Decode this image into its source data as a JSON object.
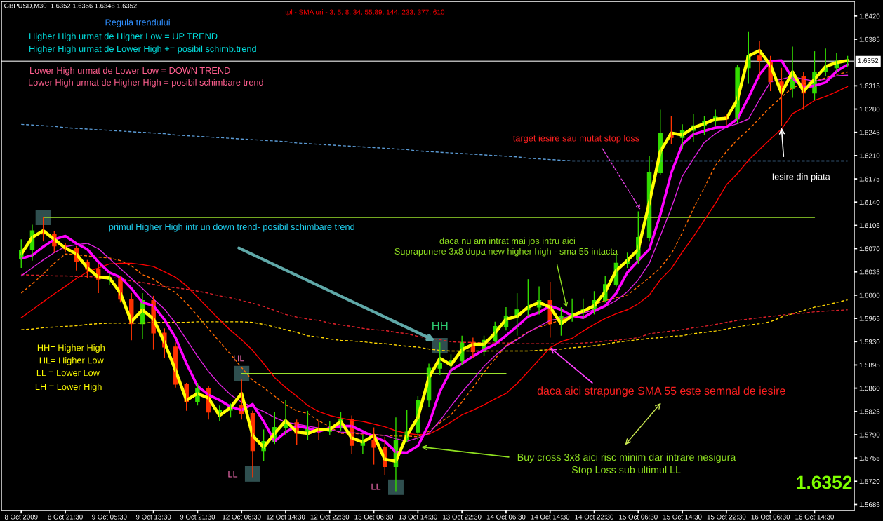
{
  "chart_data": {
    "type": "candlestick",
    "title": "GBPUSD,M30  1.6352 1.6356 1.6348 1.6352",
    "subtitle": "tpl - SMA uri - 3, 5, 8, 34, 55,89, 144, 233, 377, 610",
    "categories": [
      "8 Oct 2009",
      null,
      null,
      null,
      "8 Oct 21:30",
      null,
      null,
      null,
      "9 Oct 05:30",
      null,
      null,
      null,
      "9 Oct 13:30",
      null,
      null,
      null,
      "9 Oct 21:30",
      null,
      null,
      null,
      "12 Oct 06:30",
      null,
      null,
      null,
      "12 Oct 14:30",
      null,
      null,
      null,
      "12 Oct 22:30",
      null,
      null,
      null,
      "13 Oct 06:30",
      null,
      null,
      null,
      "13 Oct 14:30",
      null,
      null,
      null,
      "13 Oct 22:30",
      null,
      null,
      null,
      "14 Oct 06:30",
      null,
      null,
      null,
      "14 Oct 14:30",
      null,
      null,
      null,
      "14 Oct 22:30",
      null,
      null,
      null,
      "15 Oct 06:30",
      null,
      null,
      null,
      "15 Oct 14:30",
      null,
      null,
      null,
      "15 Oct 22:30",
      null,
      null,
      null,
      "16 Oct 06:30",
      null,
      null,
      null,
      "16 Oct 14:30",
      null,
      null,
      null
    ],
    "ohlc": [
      [
        1.6055,
        1.6084,
        1.6041,
        1.6068
      ],
      [
        1.6068,
        1.6106,
        1.6052,
        1.6097
      ],
      [
        1.6097,
        1.6117,
        1.6081,
        1.6092
      ],
      [
        1.6092,
        1.6097,
        1.6064,
        1.6074
      ],
      [
        1.6074,
        1.6079,
        1.6064,
        1.607
      ],
      [
        1.607,
        1.6074,
        1.6037,
        1.605
      ],
      [
        1.605,
        1.6053,
        1.6026,
        1.6039
      ],
      [
        1.6039,
        1.6047,
        1.6003,
        1.6024
      ],
      [
        1.6024,
        1.6032,
        1.6015,
        1.6026
      ],
      [
        1.6026,
        1.6029,
        1.5989,
        1.5994
      ],
      [
        1.5994,
        1.6003,
        1.5932,
        1.5957
      ],
      [
        1.5957,
        1.6003,
        1.5934,
        1.5992
      ],
      [
        1.5992,
        1.5999,
        1.5918,
        1.5943
      ],
      [
        1.5943,
        1.595,
        1.5905,
        1.5922
      ],
      [
        1.5922,
        1.5929,
        1.5861,
        1.5866
      ],
      [
        1.5866,
        1.5868,
        1.5826,
        1.584
      ],
      [
        1.584,
        1.5868,
        1.5834,
        1.5859
      ],
      [
        1.5859,
        1.5863,
        1.5813,
        1.5824
      ],
      [
        1.5824,
        1.5834,
        1.5811,
        1.5827
      ],
      [
        1.5827,
        1.5837,
        1.5816,
        1.5834
      ],
      [
        1.5834,
        1.5873,
        1.5813,
        1.5822
      ],
      [
        1.5822,
        1.5826,
        1.5726,
        1.5766
      ],
      [
        1.5766,
        1.5798,
        1.575,
        1.578
      ],
      [
        1.578,
        1.5824,
        1.5776,
        1.5801
      ],
      [
        1.5801,
        1.5842,
        1.5789,
        1.5808
      ],
      [
        1.5808,
        1.5813,
        1.5774,
        1.5792
      ],
      [
        1.5792,
        1.5826,
        1.5782,
        1.58
      ],
      [
        1.58,
        1.581,
        1.5782,
        1.5795
      ],
      [
        1.5795,
        1.581,
        1.5789,
        1.58
      ],
      [
        1.58,
        1.5824,
        1.5795,
        1.5813
      ],
      [
        1.5813,
        1.5819,
        1.5761,
        1.5774
      ],
      [
        1.5774,
        1.5789,
        1.5761,
        1.5782
      ],
      [
        1.5782,
        1.5801,
        1.5745,
        1.5771
      ],
      [
        1.5771,
        1.5787,
        1.5729,
        1.5742
      ],
      [
        1.5742,
        1.5816,
        1.5705,
        1.5782
      ],
      [
        1.5782,
        1.5827,
        1.5779,
        1.5794
      ],
      [
        1.5794,
        1.5848,
        1.5782,
        1.5842
      ],
      [
        1.5842,
        1.5897,
        1.5832,
        1.589
      ],
      [
        1.589,
        1.5929,
        1.588,
        1.5897
      ],
      [
        1.5897,
        1.5911,
        1.588,
        1.5901
      ],
      [
        1.5901,
        1.5939,
        1.5895,
        1.5929
      ],
      [
        1.5929,
        1.5936,
        1.5905,
        1.5915
      ],
      [
        1.5915,
        1.5939,
        1.5908,
        1.5932
      ],
      [
        1.5932,
        1.596,
        1.5929,
        1.5953
      ],
      [
        1.5953,
        1.5982,
        1.5947,
        1.5968
      ],
      [
        1.5968,
        1.6003,
        1.5939,
        1.5978
      ],
      [
        1.5978,
        1.6024,
        1.5968,
        1.5982
      ],
      [
        1.5982,
        1.6013,
        1.5971,
        1.5992
      ],
      [
        1.5992,
        1.602,
        1.5936,
        1.5957
      ],
      [
        1.5957,
        1.5982,
        1.5939,
        1.5968
      ],
      [
        1.5968,
        1.5995,
        1.596,
        1.5973
      ],
      [
        1.5973,
        1.5995,
        1.5964,
        1.5978
      ],
      [
        1.5978,
        1.6006,
        1.5971,
        1.5992
      ],
      [
        1.5992,
        1.6029,
        1.5989,
        1.6016
      ],
      [
        1.6016,
        1.606,
        1.6013,
        1.6048
      ],
      [
        1.6048,
        1.6064,
        1.6041,
        1.6053
      ],
      [
        1.6053,
        1.6126,
        1.6047,
        1.6087
      ],
      [
        1.6087,
        1.621,
        1.6081,
        1.6184
      ],
      [
        1.6184,
        1.6279,
        1.6181,
        1.6244
      ],
      [
        1.6244,
        1.6269,
        1.6227,
        1.6237
      ],
      [
        1.6237,
        1.6257,
        1.622,
        1.6248
      ],
      [
        1.6248,
        1.6273,
        1.6231,
        1.6255
      ],
      [
        1.6255,
        1.6269,
        1.6241,
        1.6262
      ],
      [
        1.6262,
        1.6279,
        1.6255,
        1.6268
      ],
      [
        1.6268,
        1.6273,
        1.6255,
        1.6265
      ],
      [
        1.6265,
        1.6346,
        1.6258,
        1.6342
      ],
      [
        1.6342,
        1.6397,
        1.6318,
        1.636
      ],
      [
        1.636,
        1.6383,
        1.6325,
        1.6353
      ],
      [
        1.6353,
        1.636,
        1.6307,
        1.6321
      ],
      [
        1.6321,
        1.6342,
        1.6255,
        1.6311
      ],
      [
        1.6311,
        1.6374,
        1.6297,
        1.6329
      ],
      [
        1.6329,
        1.6336,
        1.6279,
        1.6304
      ],
      [
        1.6304,
        1.6367,
        1.6294,
        1.6336
      ],
      [
        1.6336,
        1.6371,
        1.6329,
        1.6342
      ],
      [
        1.6342,
        1.6365,
        1.6336,
        1.6352
      ],
      [
        1.6352,
        1.636,
        1.6344,
        1.6352
      ]
    ],
    "colors": [
      "#33dd00",
      "#33dd00",
      "#ff3300",
      "#ff3300",
      "#ff3300",
      "#ff3300",
      "#ff3300",
      "#ff3300",
      "#33dd00",
      "#ff3300",
      "#ff3300",
      "#33dd00",
      "#ff3300",
      "#ff3300",
      "#ff3300",
      "#ff3300",
      "#33dd00",
      "#ff3300",
      "#33dd00",
      "#33dd00",
      "#ff3300",
      "#ff3300",
      "#33dd00",
      "#33dd00",
      "#33dd00",
      "#ff3300",
      "#33dd00",
      "#ff3300",
      "#33dd00",
      "#33dd00",
      "#ff3300",
      "#33dd00",
      "#ff3300",
      "#ff3300",
      "#33dd00",
      "#33dd00",
      "#33dd00",
      "#33dd00",
      "#33dd00",
      "#33dd00",
      "#33dd00",
      "#ff3300",
      "#33dd00",
      "#33dd00",
      "#33dd00",
      "#33dd00",
      "#33dd00",
      "#33dd00",
      "#ff3300",
      "#33dd00",
      "#33dd00",
      "#33dd00",
      "#33dd00",
      "#33dd00",
      "#33dd00",
      "#33dd00",
      "#33dd00",
      "#33dd00",
      "#33dd00",
      "#ff3300",
      "#33dd00",
      "#33dd00",
      "#33dd00",
      "#33dd00",
      "#ff3300",
      "#33dd00",
      "#33dd00",
      "#ff3300",
      "#ff3300",
      "#ff3300",
      "#33dd00",
      "#ff3300",
      "#33dd00",
      "#33dd00",
      "#33dd00",
      "#33dd00"
    ],
    "series": [
      {
        "type": "line",
        "color": "#ffff00",
        "line_style": "solid",
        "values": [
          1.6062,
          1.6087,
          1.6097,
          1.6084,
          1.6071,
          1.6062,
          1.6041,
          1.6027,
          1.6026,
          1.6003,
          1.596,
          1.5978,
          1.5964,
          1.5929,
          1.5887,
          1.5842,
          1.5852,
          1.5845,
          1.5819,
          1.5831,
          1.5852,
          1.5789,
          1.5771,
          1.5792,
          1.5811,
          1.5794,
          1.5792,
          1.5798,
          1.5798,
          1.581,
          1.5785,
          1.5779,
          1.5789,
          1.5753,
          1.575,
          1.5789,
          1.5816,
          1.5876,
          1.5905,
          1.5895,
          1.5918,
          1.5926,
          1.5926,
          1.5943,
          1.5964,
          1.5968,
          1.5982,
          1.5989,
          1.5982,
          1.5957,
          1.5969,
          1.5976,
          1.5984,
          1.6005,
          1.6037,
          1.6052,
          1.6069,
          1.6139,
          1.6216,
          1.6244,
          1.6241,
          1.6252,
          1.6258,
          1.6265,
          1.6266,
          1.6294,
          1.636,
          1.6368,
          1.6346,
          1.6304,
          1.6336,
          1.6307,
          1.6325,
          1.6344,
          1.635,
          1.6353
        ]
      },
      {
        "type": "line",
        "color": "#ff00ff",
        "line_style": "solid",
        "values": [
          1.6055,
          1.606,
          1.6073,
          1.6084,
          1.6089,
          1.6078,
          1.6069,
          1.605,
          1.6034,
          1.6027,
          1.601,
          1.5989,
          1.5984,
          1.5963,
          1.5936,
          1.5897,
          1.5863,
          1.585,
          1.5842,
          1.5832,
          1.5827,
          1.5836,
          1.581,
          1.578,
          1.5794,
          1.5803,
          1.58,
          1.5795,
          1.58,
          1.5803,
          1.5803,
          1.5795,
          1.5787,
          1.578,
          1.5764,
          1.5763,
          1.5773,
          1.5806,
          1.5855,
          1.5887,
          1.5897,
          1.5908,
          1.5918,
          1.5926,
          1.5939,
          1.5953,
          1.5968,
          1.5974,
          1.5984,
          1.5978,
          1.5969,
          1.5966,
          1.5976,
          1.5984,
          1.6003,
          1.6034,
          1.6052,
          1.6069,
          1.6121,
          1.6184,
          1.6227,
          1.6242,
          1.6247,
          1.6252,
          1.6253,
          1.6265,
          1.6297,
          1.6332,
          1.6352,
          1.6353,
          1.6326,
          1.6313,
          1.6315,
          1.632,
          1.6337,
          1.6347
        ]
      },
      {
        "type": "line",
        "color": "#e020e0",
        "line_style": "solid",
        "values": [
          1.6029,
          1.6041,
          1.6053,
          1.6064,
          1.6073,
          1.6076,
          1.6078,
          1.607,
          1.6055,
          1.604,
          1.6025,
          1.601,
          1.5994,
          1.5979,
          1.5958,
          1.5933,
          1.5908,
          1.5885,
          1.5866,
          1.585,
          1.5839,
          1.5832,
          1.5825,
          1.5816,
          1.5809,
          1.5806,
          1.5803,
          1.58,
          1.5798,
          1.5794,
          1.5793,
          1.5792,
          1.579,
          1.5789,
          1.5784,
          1.578,
          1.5785,
          1.5792,
          1.5811,
          1.5833,
          1.5854,
          1.5873,
          1.5893,
          1.5909,
          1.5923,
          1.5933,
          1.5944,
          1.5953,
          1.5962,
          1.5965,
          1.5969,
          1.5973,
          1.5978,
          1.5983,
          1.5992,
          1.6005,
          1.6023,
          1.6048,
          1.6089,
          1.6131,
          1.6179,
          1.6205,
          1.623,
          1.6243,
          1.6253,
          1.6258,
          1.6265,
          1.6294,
          1.6321,
          1.6325,
          1.6329,
          1.6325,
          1.6322,
          1.6325,
          1.633,
          1.6331
        ]
      },
      {
        "type": "line",
        "color": "#ff0000",
        "line_style": "solid",
        "values": [
          1.5966,
          1.5978,
          1.599,
          1.6002,
          1.6013,
          1.6025,
          1.6035,
          1.6041,
          1.6047,
          1.6048,
          1.6048,
          1.6046,
          1.6043,
          1.6035,
          1.6027,
          1.6014,
          1.5997,
          1.598,
          1.5963,
          1.5947,
          1.5933,
          1.5917,
          1.5897,
          1.5876,
          1.5861,
          1.5848,
          1.5834,
          1.5825,
          1.5819,
          1.5815,
          1.5812,
          1.581,
          1.5806,
          1.5802,
          1.5796,
          1.5792,
          1.579,
          1.5791,
          1.5799,
          1.5809,
          1.582,
          1.5827,
          1.5835,
          1.5844,
          1.5852,
          1.5867,
          1.5885,
          1.5903,
          1.5921,
          1.593,
          1.5935,
          1.5946,
          1.5956,
          1.5965,
          1.5972,
          1.5978,
          1.5987,
          1.6,
          1.6023,
          1.604,
          1.6065,
          1.6088,
          1.6113,
          1.6138,
          1.6166,
          1.6183,
          1.6203,
          1.6219,
          1.6235,
          1.625,
          1.6273,
          1.6282,
          1.6293,
          1.6299,
          1.6306,
          1.6314
        ]
      },
      {
        "type": "line",
        "color": "#ff6a00",
        "line_style": "dashed",
        "values": [
          1.6003,
          1.6017,
          1.6032,
          1.6048,
          1.6062,
          1.6061,
          1.6059,
          1.6057,
          1.6056,
          1.6052,
          1.6044,
          1.6031,
          1.6024,
          1.6013,
          1.6004,
          1.5988,
          1.5969,
          1.5949,
          1.593,
          1.5911,
          1.5891,
          1.5872,
          1.5861,
          1.5848,
          1.5835,
          1.5826,
          1.5822,
          1.5811,
          1.5802,
          1.5792,
          1.5792,
          1.5791,
          1.579,
          1.5789,
          1.5788,
          1.5788,
          1.5787,
          1.5795,
          1.5808,
          1.582,
          1.5839,
          1.5861,
          1.5884,
          1.5904,
          1.5924,
          1.5934,
          1.5945,
          1.5952,
          1.5957,
          1.5963,
          1.5967,
          1.5977,
          1.5986,
          1.5992,
          1.5996,
          1.6,
          1.6013,
          1.6026,
          1.6041,
          1.6062,
          1.6094,
          1.613,
          1.6162,
          1.6195,
          1.6216,
          1.6234,
          1.6249,
          1.6266,
          1.6283,
          1.6298,
          1.6312,
          1.6318,
          1.6322,
          1.6327,
          1.6332,
          1.6336
        ]
      },
      {
        "type": "line",
        "color": "#e0202a",
        "line_style": "dashed",
        "values": [
          1.6031,
          1.603,
          1.603,
          1.6029,
          1.6029,
          1.6028,
          1.6028,
          1.6027,
          1.6027,
          1.6025,
          1.6021,
          1.6019,
          1.6016,
          1.6013,
          1.6011,
          1.6009,
          1.6006,
          1.6003,
          1.5999,
          1.5996,
          1.5992,
          1.5988,
          1.5983,
          1.5977,
          1.5971,
          1.5967,
          1.5964,
          1.5962,
          1.5958,
          1.5955,
          1.5953,
          1.595,
          1.5948,
          1.5947,
          1.5944,
          1.5942,
          1.5938,
          1.5935,
          1.5933,
          1.593,
          1.5929,
          1.5929,
          1.5928,
          1.5928,
          1.5928,
          1.5927,
          1.5927,
          1.5927,
          1.5927,
          1.5927,
          1.5927,
          1.5928,
          1.5929,
          1.5931,
          1.5932,
          1.5934,
          1.5936,
          1.5942,
          1.5944,
          1.5946,
          1.5948,
          1.5951,
          1.5953,
          1.5956,
          1.5959,
          1.5962,
          1.5964,
          1.5966,
          1.5968,
          1.597,
          1.5972,
          1.5973,
          1.5975,
          1.5976,
          1.5977,
          1.5978
        ]
      },
      {
        "type": "line",
        "color": "#ffd700",
        "line_style": "dashed",
        "values": [
          1.5948,
          1.5949,
          1.5951,
          1.5952,
          1.5953,
          1.5954,
          1.5956,
          1.5957,
          1.5958,
          1.5958,
          1.5958,
          1.5958,
          1.5959,
          1.5959,
          1.5959,
          1.5959,
          1.596,
          1.596,
          1.596,
          1.596,
          1.596,
          1.5959,
          1.5956,
          1.5952,
          1.5948,
          1.5944,
          1.5939,
          1.5937,
          1.5934,
          1.5932,
          1.5931,
          1.593,
          1.5928,
          1.5927,
          1.5925,
          1.5923,
          1.5922,
          1.5919,
          1.5917,
          1.5916,
          1.5916,
          1.5916,
          1.5916,
          1.5916,
          1.5916,
          1.5916,
          1.5916,
          1.5917,
          1.5918,
          1.5919,
          1.5921,
          1.5922,
          1.5924,
          1.5926,
          1.5929,
          1.5931,
          1.5933,
          1.5935,
          1.5936,
          1.5938,
          1.5939,
          1.5942,
          1.5944,
          1.5946,
          1.5949,
          1.5952,
          1.5955,
          1.5957,
          1.596,
          1.5967,
          1.5972,
          1.5977,
          1.5982,
          1.5985,
          1.5989,
          1.5993
        ]
      },
      {
        "type": "line",
        "color": "#5b9bd5",
        "line_style": "dashed",
        "values": [
          1.6257,
          1.6256,
          1.6255,
          1.6254,
          1.6252,
          1.6251,
          1.625,
          1.6249,
          1.6248,
          1.6247,
          1.6246,
          1.6245,
          1.6244,
          1.6243,
          1.6241,
          1.624,
          1.6239,
          1.6238,
          1.6237,
          1.6236,
          1.6235,
          1.6234,
          1.6233,
          1.6232,
          1.6231,
          1.6229,
          1.6228,
          1.6227,
          1.6226,
          1.6225,
          1.6224,
          1.6223,
          1.6222,
          1.6221,
          1.622,
          1.6219,
          1.6217,
          1.6216,
          1.6215,
          1.6214,
          1.6213,
          1.6212,
          1.6211,
          1.621,
          1.6209,
          1.6208,
          1.6206,
          1.6205,
          1.6204,
          1.6203,
          1.6202,
          1.6202,
          1.6202,
          1.6202,
          1.6202,
          1.6202,
          1.6202,
          1.6202,
          1.6202,
          1.6202,
          1.6202,
          1.6202,
          1.6202,
          1.6202,
          1.6202,
          1.6202,
          1.6202,
          1.6202,
          1.6202,
          1.6202,
          1.6202,
          1.6202,
          1.6202,
          1.6202,
          1.6202,
          1.6202
        ]
      },
      {
        "type": "line",
        "color": "#9be22d",
        "line_style": "solid",
        "values": [
          null,
          null,
          1.6117,
          1.6117,
          1.6117,
          1.6117,
          1.6117,
          1.6117,
          1.6117,
          1.6117,
          1.6117,
          1.6117,
          1.6117,
          1.6117,
          1.6117,
          1.6117,
          1.6117,
          1.6117,
          1.6117,
          1.6117,
          1.6117,
          1.6117,
          1.6117,
          1.6117,
          1.6117,
          1.6117,
          1.6117,
          1.6117,
          1.6117,
          1.6117,
          1.6117,
          1.6117,
          1.6117,
          1.6117,
          1.6117,
          1.6117,
          1.6117,
          1.6117,
          1.6117,
          1.6117,
          1.6117,
          1.6117,
          1.6117,
          1.6117,
          1.6117,
          1.6117,
          1.6117,
          1.6117,
          1.6117,
          1.6117,
          1.6117,
          1.6117,
          1.6117,
          1.6117,
          1.6117,
          1.6117,
          1.6117,
          1.6117,
          1.6117,
          1.6117,
          1.6117,
          1.6117,
          1.6117,
          1.6117,
          1.6117,
          1.6117,
          1.6117,
          1.6117,
          1.6117,
          1.6117,
          1.6117,
          1.6117,
          1.6117,
          null,
          null,
          null
        ]
      },
      {
        "type": "line",
        "color": "#9be22d",
        "line_style": "solid",
        "values": [
          null,
          null,
          null,
          null,
          null,
          null,
          null,
          null,
          null,
          null,
          null,
          null,
          null,
          null,
          null,
          null,
          null,
          null,
          null,
          null,
          1.5882,
          1.5882,
          1.5882,
          1.5882,
          1.5882,
          1.5882,
          1.5882,
          1.5882,
          1.5882,
          1.5882,
          1.5882,
          1.5882,
          1.5882,
          1.5882,
          1.5882,
          1.5882,
          1.5882,
          1.5882,
          1.5882,
          1.5882,
          1.5882,
          1.5882,
          1.5882,
          1.5882,
          1.5882,
          null,
          null,
          null,
          null,
          null,
          null,
          null,
          null,
          null,
          null,
          null,
          null,
          null,
          null,
          null,
          null,
          null,
          null,
          null,
          null,
          null,
          null,
          null,
          null,
          null,
          null,
          null,
          null,
          null,
          null,
          null
        ]
      },
      {
        "type": "scatter",
        "color": "#2f4f4f",
        "marker": "square",
        "values": [
          null,
          null,
          1.6117,
          null,
          null,
          null,
          null,
          null,
          null,
          null,
          null,
          null,
          null,
          null,
          null,
          null,
          null,
          null,
          null,
          null,
          1.5882,
          1.5731,
          null,
          null,
          null,
          null,
          null,
          null,
          null,
          null,
          null,
          null,
          null,
          null,
          1.5711,
          null,
          null,
          null,
          1.5924,
          null,
          null,
          null,
          null,
          null,
          null,
          null,
          null,
          null,
          null,
          null,
          null,
          null,
          null,
          null,
          null,
          null,
          null,
          null,
          null,
          null,
          null,
          null,
          null,
          null,
          null,
          null,
          null,
          null,
          null,
          null,
          null,
          null,
          null,
          null,
          null,
          null
        ]
      }
    ],
    "ylim": [
      1.5676,
      1.6442
    ],
    "yticks": [
      {
        "value": 1.642,
        "label": "1.6420"
      },
      {
        "value": 1.6385,
        "label": "1.6385"
      },
      {
        "value": 1.6315,
        "label": "1.6315"
      },
      {
        "value": 1.628,
        "label": "1.6280"
      },
      {
        "value": 1.6245,
        "label": "1.6245"
      },
      {
        "value": 1.621,
        "label": "1.6210"
      },
      {
        "value": 1.6175,
        "label": "1.6175"
      },
      {
        "value": 1.614,
        "label": "1.6140"
      },
      {
        "value": 1.6105,
        "label": "1.6105"
      },
      {
        "value": 1.607,
        "label": "1.6070"
      },
      {
        "value": 1.6035,
        "label": "1.6035"
      },
      {
        "value": 1.6,
        "label": "1.6000"
      },
      {
        "value": 1.5965,
        "label": "1.5965"
      },
      {
        "value": 1.593,
        "label": "1.5930"
      },
      {
        "value": 1.5895,
        "label": "1.5895"
      },
      {
        "value": 1.586,
        "label": "1.5860"
      },
      {
        "value": 1.5825,
        "label": "1.5825"
      },
      {
        "value": 1.579,
        "label": "1.5790"
      },
      {
        "value": 1.5755,
        "label": "1.5755"
      },
      {
        "value": 1.572,
        "label": "1.5720"
      },
      {
        "value": 1.5685,
        "label": "1.5685"
      }
    ],
    "ref_lines": [
      {
        "axis": "y",
        "value": 1.6352,
        "label": "1.6352",
        "color": "#b0b0b0"
      }
    ],
    "annotations": [
      "Regula trendului",
      "Higher High urmat de Higher Low = UP TREND",
      "Higher High urmat de Lower High += posibil schimb.trend",
      "Lower High urmat de Lower Low = DOWN TREND",
      "Lower High urmat de Higher High = posibil schimbare trend",
      "target iesire sau mutat stop loss",
      "Iesire din piata",
      "primul Higher High intr un down trend- posibil schimbare trend",
      "daca nu am intrat mai jos intru aici",
      "Suprapunere 3x8 dupa new higher high - sma 55 intacta",
      "HH",
      "HL",
      "LL",
      "LL",
      "HH= Higher High",
      "HL= Higher Low",
      "LL = Lower Low",
      "LH = Lower High",
      {
        "text": "daca aici strapunge SMA 55 este semnal de iesire",
        "x": "14 Oct 14:30",
        "y": 1.5921
      },
      "Buy cross 3x8 aici risc minim dar intrare nesigura",
      "Stop Loss sub ultimul LL",
      "1.6352"
    ],
    "grid": false
  }
}
